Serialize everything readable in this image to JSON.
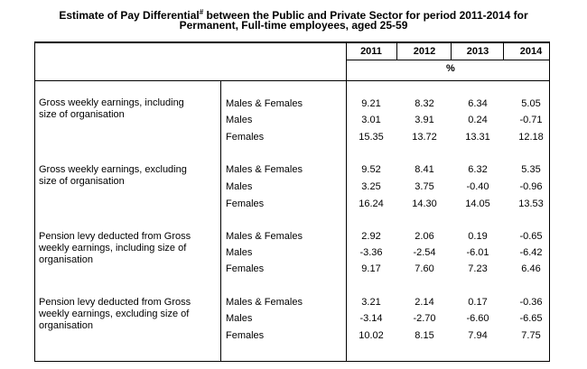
{
  "title": {
    "line1_a": "Estimate of Pay Differential",
    "line1_sup": "#",
    "line1_b": " between the Public and Private Sector for period 2011-2014 for",
    "line2": "Permanent, Full-time employees, aged 25-59"
  },
  "header": {
    "years": [
      "2011",
      "2012",
      "2013",
      "2014"
    ],
    "unit": "%"
  },
  "sections": [
    {
      "desc_line1": "Gross weekly earnings, including",
      "desc_line2": "size of organisation",
      "desc_line3": "",
      "rows": [
        {
          "group": "Males & Females",
          "v": [
            "9.21",
            "8.32",
            "6.34",
            "5.05"
          ]
        },
        {
          "group": "Males",
          "v": [
            "3.01",
            "3.91",
            "0.24",
            "-0.71"
          ]
        },
        {
          "group": "Females",
          "v": [
            "15.35",
            "13.72",
            "13.31",
            "12.18"
          ]
        }
      ]
    },
    {
      "desc_line1": "Gross weekly earnings, excluding",
      "desc_line2": "size of organisation",
      "desc_line3": "",
      "rows": [
        {
          "group": "Males & Females",
          "v": [
            "9.52",
            "8.41",
            "6.32",
            "5.35"
          ]
        },
        {
          "group": "Males",
          "v": [
            "3.25",
            "3.75",
            "-0.40",
            "-0.96"
          ]
        },
        {
          "group": "Females",
          "v": [
            "16.24",
            "14.30",
            "14.05",
            "13.53"
          ]
        }
      ]
    },
    {
      "desc_line1": "Pension levy deducted from Gross",
      "desc_line2": "weekly earnings, including size of",
      "desc_line3": "organisation",
      "rows": [
        {
          "group": "Males & Females",
          "v": [
            "2.92",
            "2.06",
            "0.19",
            "-0.65"
          ]
        },
        {
          "group": "Males",
          "v": [
            "-3.36",
            "-2.54",
            "-6.01",
            "-6.42"
          ]
        },
        {
          "group": "Females",
          "v": [
            "9.17",
            "7.60",
            "7.23",
            "6.46"
          ]
        }
      ]
    },
    {
      "desc_line1": "Pension levy deducted from Gross",
      "desc_line2": "weekly earnings, excluding size of",
      "desc_line3": "organisation",
      "rows": [
        {
          "group": "Males & Females",
          "v": [
            "3.21",
            "2.14",
            "0.17",
            "-0.36"
          ]
        },
        {
          "group": "Males",
          "v": [
            "-3.14",
            "-2.70",
            "-6.60",
            "-6.65"
          ]
        },
        {
          "group": "Females",
          "v": [
            "10.02",
            "8.15",
            "7.94",
            "7.75"
          ]
        }
      ]
    }
  ]
}
